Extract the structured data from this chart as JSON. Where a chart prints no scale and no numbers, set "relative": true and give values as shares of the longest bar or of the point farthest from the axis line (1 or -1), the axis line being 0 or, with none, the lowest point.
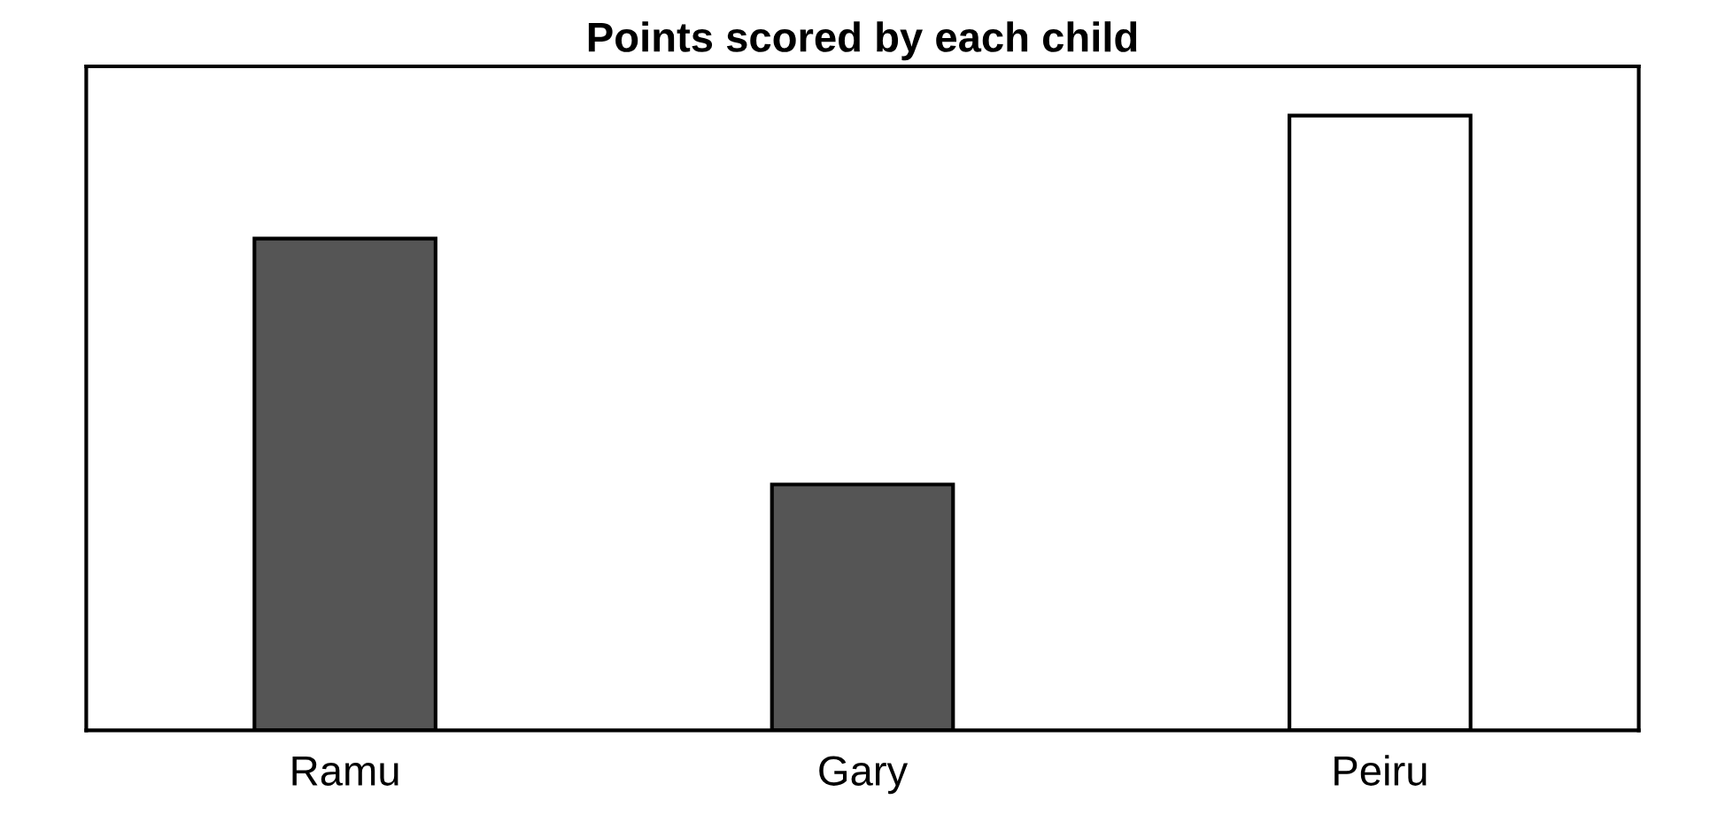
{
  "chart_data": {
    "type": "bar",
    "title": "Points scored by each child",
    "categories": [
      "Ramu",
      "Gary",
      "Peiru"
    ],
    "values": [
      0.8,
      0.4,
      1
    ],
    "colors": [
      "#555555",
      "#555555",
      "#ffffff"
    ],
    "relative": true,
    "grid": false,
    "legend": false
  }
}
